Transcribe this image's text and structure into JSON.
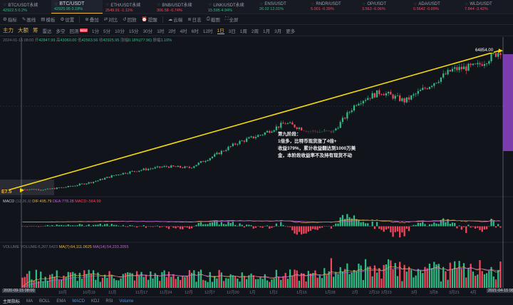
{
  "tickers": [
    {
      "symbol": "BTC/USDT永续",
      "price": "42922.5",
      "change": "0.2%",
      "dir": "up",
      "active": false
    },
    {
      "symbol": "BTC/USDT",
      "price": "42925.95",
      "change": "0.18%",
      "dir": "up",
      "active": true
    },
    {
      "symbol": "ETH/USDT永续",
      "price": "2549.91",
      "change": "-1.11%",
      "dir": "dn",
      "active": false
    },
    {
      "symbol": "BNB/USDT永续",
      "price": "306.58",
      "change": "-0.74%",
      "dir": "dn",
      "active": false
    },
    {
      "symbol": "LINK/USDT永续",
      "price": "15.595",
      "change": "4.94%",
      "dir": "up",
      "active": false
    },
    {
      "symbol": "ENS/USDT",
      "price": "26.02",
      "change": "12.01%",
      "dir": "up",
      "active": false
    },
    {
      "symbol": "RNDR/USDT",
      "price": "5.001",
      "change": "-0.39%",
      "dir": "dn",
      "active": false
    },
    {
      "symbol": "OP/USDT",
      "price": "3.563",
      "change": "-6.06%",
      "dir": "dn",
      "active": false
    },
    {
      "symbol": "ADA/USDT",
      "price": "0.5642",
      "change": "-0.89%",
      "dir": "dn",
      "active": false
    },
    {
      "symbol": "WLD/USDT",
      "price": "7.844",
      "change": "-3.42%",
      "dir": "dn",
      "active": false
    }
  ],
  "toolbar": [
    "指标",
    "画线",
    "模板",
    "设置",
    "叠加",
    "对比",
    "回放",
    "提醒",
    "云端",
    "日志",
    "截图",
    "全屏"
  ],
  "toolbar2": [
    {
      "label": "主力",
      "kind": "strong"
    },
    {
      "label": "大额",
      "kind": "strong"
    },
    {
      "label": "筹",
      "kind": "strong"
    },
    {
      "label": "雷达",
      "kind": "plain"
    },
    {
      "label": "多空",
      "kind": "plain"
    },
    {
      "label": "回测",
      "kind": "plain",
      "badge": "NEW"
    },
    {
      "label": "1分",
      "kind": "plain"
    },
    {
      "label": "5分",
      "kind": "plain"
    },
    {
      "label": "10分",
      "kind": "plain"
    },
    {
      "label": "15分",
      "kind": "plain"
    },
    {
      "label": "30分",
      "kind": "plain"
    },
    {
      "label": "1时",
      "kind": "plain"
    },
    {
      "label": "2时",
      "kind": "plain"
    },
    {
      "label": "4时",
      "kind": "plain"
    },
    {
      "label": "6时",
      "kind": "plain"
    },
    {
      "label": "12时",
      "kind": "plain"
    },
    {
      "label": "1日",
      "kind": "sel"
    },
    {
      "label": "3日",
      "kind": "plain"
    },
    {
      "label": "1周",
      "kind": "plain"
    },
    {
      "label": "2周",
      "kind": "plain"
    },
    {
      "label": "1月",
      "kind": "plain"
    },
    {
      "label": "3月",
      "kind": "plain"
    },
    {
      "label": "更多",
      "kind": "plain"
    }
  ],
  "ohlc": {
    "date": "2024-01-16 08:00",
    "open_label": "开",
    "open": "42847.99",
    "high_label": "高",
    "high": "43060.00",
    "low_label": "低",
    "low": "42563.56",
    "close_label": "收",
    "close": "42925.95",
    "change_label": "涨幅",
    "change": "0.18%(77.96)",
    "amp_label": "振幅",
    "amp": "1.16%"
  },
  "annotation": {
    "lines": [
      "第九阶段：",
      "1倍多，比特币现货涨了4倍+",
      "收益379%，累计收益翻达到1000万美",
      "金，本阶段收益率不及持有现货不动"
    ]
  },
  "price_tag": "64854.00",
  "start_label": "E7.5",
  "macd_label": {
    "name": "MACD",
    "params": "(12,26,9)",
    "dif": "DIF:495.79",
    "dea": "DEA:778.28",
    "macd": "MACD:-564.99"
  },
  "volume_label": {
    "name": "VOLUME",
    "vol": "VOLUME:6,207.5423",
    "ma7": "MA(7):64,111.0625",
    "ma14": "MA(14):54,233.2055"
  },
  "xaxis": [
    "2020-09-15 08:00",
    "10月",
    "10月19",
    "11月",
    "11月17",
    "11月24",
    "12月",
    "12月7",
    "12月20",
    "1月",
    "1月2",
    "1月15",
    "1月28",
    "2月",
    "2月10",
    "2月23",
    "3月",
    "3月8",
    "3月21",
    "4月",
    "2021-04-15 08:00"
  ],
  "bottom_bar": [
    "主图指标",
    "MA",
    "BOLL",
    "EMA",
    "MACD",
    "KDJ",
    "RSI",
    "Volume"
  ],
  "colors": {
    "up": "#2ebd85",
    "down": "#f6465d",
    "accent": "#e8b341",
    "dif": "#e8b341",
    "dea": "#c163d8",
    "bg": "#12141c"
  },
  "chart_data": {
    "type": "candlestick",
    "symbol": "BTC/USDT",
    "x": [
      "2020-09-15",
      "2020-10-01",
      "2020-10-19",
      "2020-11-01",
      "2020-11-17",
      "2020-11-24",
      "2020-12-01",
      "2020-12-07",
      "2020-12-20",
      "2021-01-01",
      "2021-01-02",
      "2021-01-15",
      "2021-01-28",
      "2021-02-01",
      "2021-02-10",
      "2021-02-23",
      "2021-03-01",
      "2021-03-08",
      "2021-03-21",
      "2021-04-01",
      "2021-04-15"
    ],
    "close": [
      10800,
      10700,
      11900,
      13800,
      16700,
      18400,
      19700,
      19200,
      23800,
      29000,
      32200,
      36700,
      33400,
      33200,
      44800,
      48900,
      45200,
      51200,
      57500,
      58800,
      64854
    ],
    "trendline": {
      "from": "2020-09-15",
      "to": "2021-04-15"
    }
  }
}
